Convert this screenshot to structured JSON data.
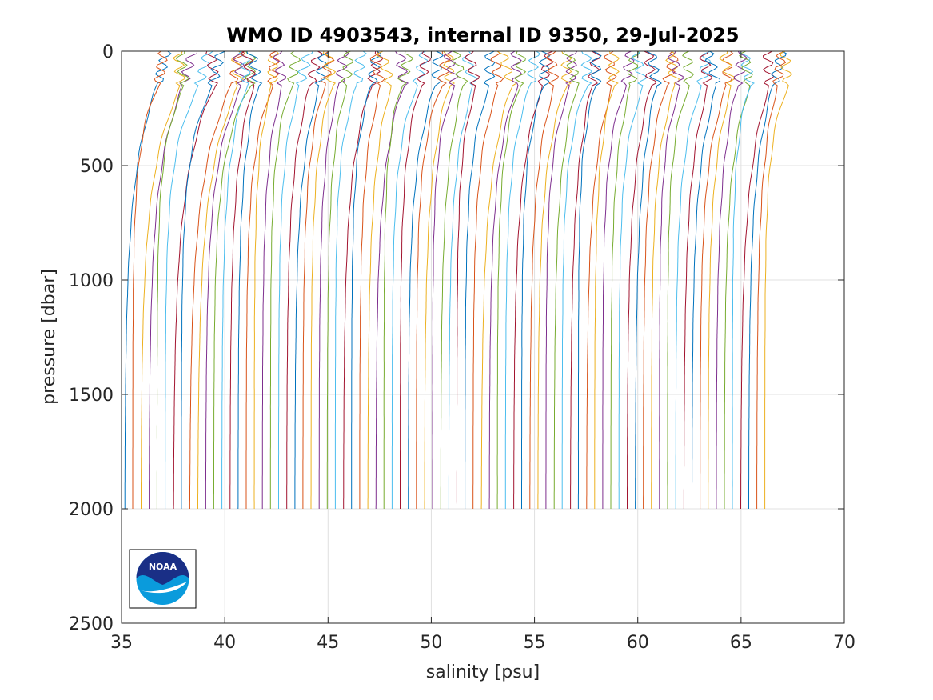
{
  "chart_data": {
    "type": "line",
    "title": "WMO ID 4903543, internal ID 9350, 29-Jul-2025",
    "xlabel": "salinity [psu]",
    "ylabel": "pressure [dbar]",
    "xlim": [
      35,
      70
    ],
    "ylim": [
      0,
      2500
    ],
    "y_reversed": true,
    "grid": true,
    "x_ticks": [
      "35",
      "40",
      "45",
      "50",
      "55",
      "60",
      "65",
      "70"
    ],
    "y_ticks": [
      "0",
      "500",
      "1000",
      "1500",
      "2000",
      "2500"
    ],
    "series_colors": [
      "#0072BD",
      "#D95319",
      "#EDB120",
      "#7E2F8E",
      "#77AC30",
      "#4DBEEE",
      "#A2142F"
    ],
    "profile_count": 80,
    "profile_offset_psu": 0.4,
    "profile_max_pressure": 2000,
    "profile_deep_salinity_first": 35.15,
    "profile_deep_salinity_last": 66.15,
    "logo": {
      "name": "NOAA",
      "text": "NOAA",
      "position": "bottom-left"
    }
  }
}
